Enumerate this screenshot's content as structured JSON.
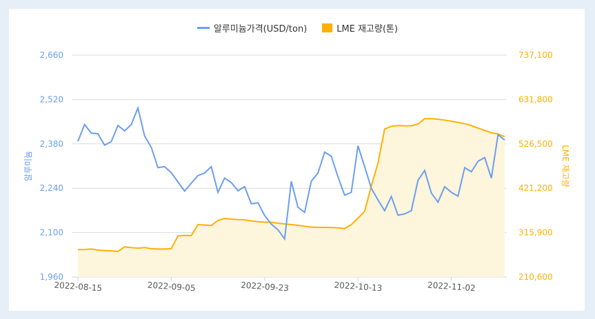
{
  "chart_data": {
    "type": "line",
    "legend": {
      "position": "top",
      "entries": [
        "알루미늄가격(USD/ton)",
        "LME 재고량(톤)"
      ]
    },
    "x_ticks": [
      {
        "index": 0,
        "label": "2022-08-15"
      },
      {
        "index": 14,
        "label": "2022-09-05"
      },
      {
        "index": 28,
        "label": "2022-09-23"
      },
      {
        "index": 42,
        "label": "2022-10-13"
      },
      {
        "index": 56,
        "label": "2022-11-02"
      }
    ],
    "y_left": {
      "label": "알루미늄",
      "range": [
        1960,
        2660
      ],
      "ticks": [
        "1,960",
        "2,100",
        "2,240",
        "2,380",
        "2,520",
        "2,660"
      ],
      "tick_values": [
        1960,
        2100,
        2240,
        2380,
        2520,
        2660
      ],
      "color": "#6a9ef0"
    },
    "y_right": {
      "label": "LME 재고량",
      "range": [
        210600,
        737100
      ],
      "ticks": [
        "210,600",
        "315,900",
        "421,200",
        "526,500",
        "631,800",
        "737,100"
      ],
      "tick_values": [
        210600,
        315900,
        421200,
        526500,
        631800,
        737100
      ],
      "color": "#ffb000"
    },
    "grid": true,
    "series": [
      {
        "name": "알루미늄가격(USD/ton)",
        "axis": "left",
        "type": "line",
        "color": "#6a9ef0",
        "values": [
          2388,
          2441,
          2414,
          2412,
          2376,
          2387,
          2438,
          2421,
          2441,
          2493,
          2405,
          2369,
          2305,
          2308,
          2289,
          2260,
          2231,
          2256,
          2280,
          2288,
          2308,
          2227,
          2272,
          2258,
          2232,
          2245,
          2191,
          2194,
          2154,
          2127,
          2109,
          2080,
          2262,
          2180,
          2164,
          2262,
          2288,
          2354,
          2341,
          2276,
          2218,
          2227,
          2374,
          2308,
          2240,
          2203,
          2169,
          2214,
          2155,
          2159,
          2169,
          2265,
          2296,
          2225,
          2196,
          2245,
          2227,
          2215,
          2305,
          2292,
          2325,
          2337,
          2272,
          2409,
          2392
        ]
      },
      {
        "name": "LME 재고량(톤)",
        "axis": "right",
        "type": "area",
        "color": "#ffb000",
        "fill": "#fdf5dc",
        "values": [
          275500,
          275500,
          277100,
          274400,
          273300,
          272700,
          271100,
          282100,
          280400,
          278800,
          280400,
          277700,
          277100,
          277100,
          277700,
          308200,
          309300,
          308700,
          334900,
          333800,
          332700,
          344700,
          349600,
          348000,
          346900,
          346300,
          343600,
          341900,
          340900,
          340300,
          338200,
          336500,
          334900,
          333200,
          331100,
          328900,
          328400,
          328400,
          328000,
          327200,
          325600,
          334900,
          350100,
          366500,
          426500,
          480900,
          561700,
          568200,
          569900,
          569400,
          569400,
          573600,
          586200,
          586200,
          585100,
          582900,
          580100,
          577400,
          574100,
          569900,
          563800,
          558400,
          552800,
          550200,
          543700
        ]
      }
    ]
  }
}
